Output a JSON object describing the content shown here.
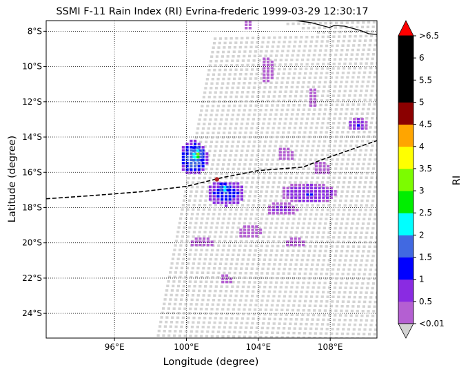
{
  "title": "SSMI F-11 Rain Index (RI) Evrina-frederic 1999-03-29 12:30:17",
  "x_axis": {
    "label": "Longitude (degree)",
    "range": [
      92.2,
      110.6
    ],
    "ticks": [
      {
        "v": 96,
        "label": "96°E"
      },
      {
        "v": 100,
        "label": "100°E"
      },
      {
        "v": 104,
        "label": "104°E"
      },
      {
        "v": 108,
        "label": "108°E"
      }
    ]
  },
  "y_axis": {
    "label": "Latitude (degree)",
    "range": [
      -25.4,
      -7.4
    ],
    "ticks": [
      {
        "v": -8,
        "label": "8°S"
      },
      {
        "v": -10,
        "label": "10°S"
      },
      {
        "v": -12,
        "label": "12°S"
      },
      {
        "v": -14,
        "label": "14°S"
      },
      {
        "v": -16,
        "label": "16°S"
      },
      {
        "v": -18,
        "label": "18°S"
      },
      {
        "v": -20,
        "label": "20°S"
      },
      {
        "v": -22,
        "label": "22°S"
      },
      {
        "v": -24,
        "label": "24°S"
      }
    ]
  },
  "colorbar": {
    "label": "RI",
    "bins": [
      "#b45fd2",
      "#8a2be2",
      "#0000ff",
      "#4169e1",
      "#00ffff",
      "#00ee00",
      "#7cfc00",
      "#ffff00",
      "#ffa500",
      "#8b0000",
      "#000000",
      "#000000",
      "#000000"
    ],
    "over_color": "#ff0000",
    "under_color": "#d3d3d3",
    "tick_labels": [
      "<0.01",
      "0.5",
      "1",
      "1.5",
      "2",
      "2.5",
      "3",
      "3.5",
      "4",
      "4.5",
      "5",
      "5.5",
      "6",
      ">6.5"
    ]
  },
  "colors": {
    "no_rain": "#d3d3d3",
    "track": "#000000",
    "storm_center": "#b22222"
  },
  "chart_data": {
    "type": "map",
    "grid": true,
    "swath": {
      "west_edge": [
        [
          -8.4,
          101.6
        ],
        [
          -25.4,
          98.4
        ]
      ],
      "north_edge": [
        [
          -7.4,
          104.5
        ]
      ]
    },
    "storm_center": {
      "lon": 101.7,
      "lat": -16.4
    },
    "track": [
      [
        92.2,
        -17.5
      ],
      [
        95.0,
        -17.3
      ],
      [
        97.5,
        -17.1
      ],
      [
        100.0,
        -16.8
      ],
      [
        102.0,
        -16.3
      ],
      [
        104.0,
        -15.9
      ],
      [
        106.5,
        -15.7
      ],
      [
        107.5,
        -15.3
      ],
      [
        110.6,
        -14.2
      ]
    ],
    "rain_clusters": [
      {
        "lon": 100.4,
        "lat": -15.2,
        "rx": 0.8,
        "ry": 1.0,
        "ri": 2.0
      },
      {
        "lon": 100.6,
        "lat": -15.0,
        "rx": 0.4,
        "ry": 0.5,
        "ri": 3.0
      },
      {
        "lon": 102.2,
        "lat": -17.2,
        "rx": 1.1,
        "ry": 0.7,
        "ri": 1.5
      },
      {
        "lon": 102.1,
        "lat": -16.9,
        "rx": 0.4,
        "ry": 0.3,
        "ri": 2.5
      },
      {
        "lon": 106.8,
        "lat": -17.2,
        "rx": 1.6,
        "ry": 0.6,
        "ri": 1.0
      },
      {
        "lon": 105.3,
        "lat": -18.1,
        "rx": 0.9,
        "ry": 0.4,
        "ri": 0.7
      },
      {
        "lon": 109.5,
        "lat": -13.3,
        "rx": 0.6,
        "ry": 0.4,
        "ri": 1.0
      },
      {
        "lon": 104.5,
        "lat": -10.2,
        "rx": 0.4,
        "ry": 0.8,
        "ri": 0.4
      },
      {
        "lon": 107.0,
        "lat": -11.8,
        "rx": 0.3,
        "ry": 0.6,
        "ri": 0.4
      },
      {
        "lon": 100.8,
        "lat": -20.0,
        "rx": 0.7,
        "ry": 0.3,
        "ri": 0.4
      },
      {
        "lon": 103.5,
        "lat": -19.4,
        "rx": 0.7,
        "ry": 0.4,
        "ri": 0.4
      },
      {
        "lon": 102.2,
        "lat": -22.1,
        "rx": 0.4,
        "ry": 0.3,
        "ri": 0.3
      },
      {
        "lon": 106.0,
        "lat": -20.0,
        "rx": 0.6,
        "ry": 0.3,
        "ri": 0.3
      },
      {
        "lon": 105.5,
        "lat": -15.0,
        "rx": 0.5,
        "ry": 0.4,
        "ri": 0.4
      },
      {
        "lon": 107.5,
        "lat": -15.8,
        "rx": 0.5,
        "ry": 0.4,
        "ri": 0.4
      },
      {
        "lon": 103.4,
        "lat": -7.7,
        "rx": 0.3,
        "ry": 0.3,
        "ri": 0.3
      }
    ]
  }
}
